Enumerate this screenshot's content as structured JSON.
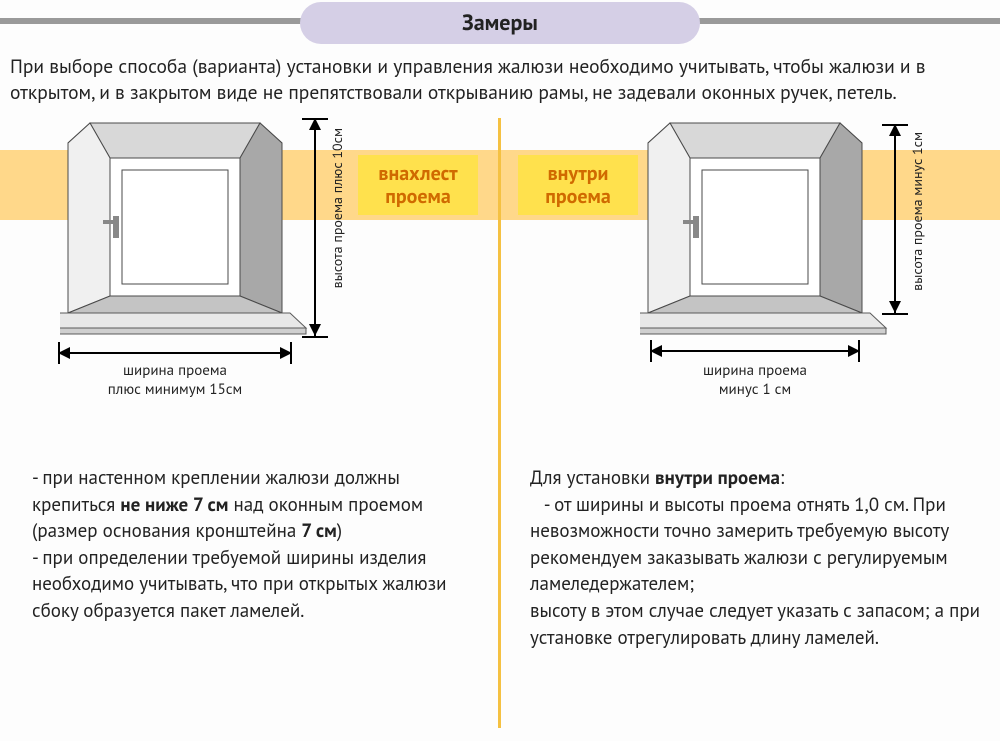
{
  "title": "Замеры",
  "intro": "При выборе способа (варианта)  установки и управления  жалюзи необходимо учитывать, чтобы  жалюзи и в открытом, и в закрытом виде не препятствовали  открыванию  рамы, не задевали оконных ручек, петель.",
  "band_color": "#ffd88a",
  "divider_color": "#f5c142",
  "label_bg": "#ffe14d",
  "label_fg": "#d06a00",
  "left": {
    "label_line1": "внахлест",
    "label_line2": "проема",
    "v_dim": "высота проема плюс 10см",
    "h_dim_line1": "ширина проема",
    "h_dim_line2": "плюс минимум 15см",
    "text": "- при настенном креплении жалюзи должны крепиться <b>не ниже 7 см</b> над оконным  проемом (размер основания кронштейна <b>7 см</b>)<br>- при определении требуемой ширины изделия необходимо учитывать, что при открытых жалюзи сбоку образуется  пакет ламелей."
  },
  "right": {
    "label_line1": "внутри",
    "label_line2": "проема",
    "v_dim": "высота проема минус 1см",
    "h_dim_line1": "ширина проема",
    "h_dim_line2": "минус 1 см",
    "text": "Для установки <b>внутри проема</b>:<br>&nbsp;&nbsp;&nbsp;- от  ширины  и  высоты  проема  отнять 1,0 см. При  невозможности точно замерить требуемую высоту рекомендуем заказывать жалюзи с регулируемым  ламеледержателем;<br>высоту в этом случае следует указать с запасом; а при установке отрегулировать  длину ламелей."
  },
  "window": {
    "outer_stroke": "#4a4a4a",
    "sill_stroke": "#5a5a5a",
    "inner_fill": "#ffffff"
  }
}
